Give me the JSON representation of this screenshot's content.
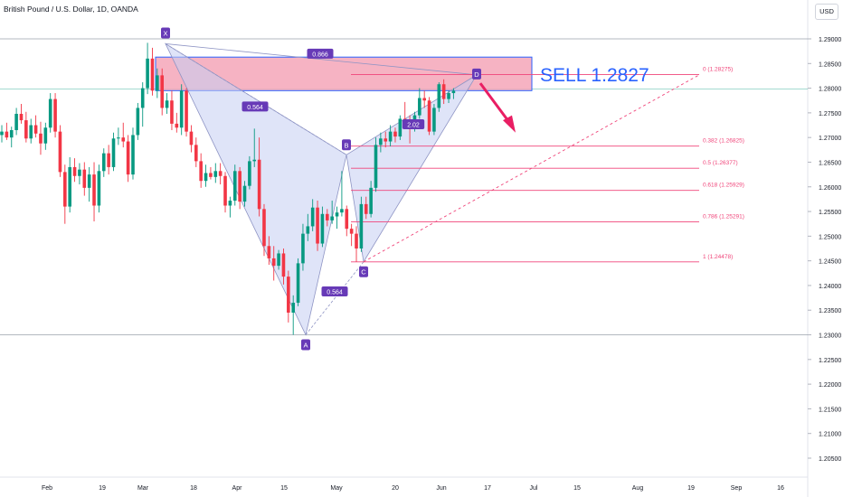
{
  "header": {
    "title": "British Pound / U.S. Dollar, 1D, OANDA",
    "currency": "USD"
  },
  "colors": {
    "bull": "#089981",
    "bear": "#f23645",
    "pattern_fill": "#c5cdf2",
    "pattern_line": "#8e94c4",
    "label_bg": "#673ab7",
    "fib": "#f0457a",
    "zone_fill": "#f5a6b8",
    "zone_border": "#2962ff",
    "sell_text": "#2962ff",
    "arrow": "#e91e63"
  },
  "chart_data": {
    "type": "candlestick",
    "title": "British Pound / U.S. Dollar, 1D, OANDA",
    "ylim": [
      1.2025,
      1.2925
    ],
    "y_ticks": [
      "1.29000",
      "1.28500",
      "1.28000",
      "1.27500",
      "1.27000",
      "1.26500",
      "1.26000",
      "1.25500",
      "1.25000",
      "1.24500",
      "1.24000",
      "1.23500",
      "1.23000",
      "1.22500",
      "1.22000",
      "1.21500",
      "1.21000",
      "1.20500"
    ],
    "x_ticks": [
      "Feb",
      "19",
      "Mar",
      "18",
      "Apr",
      "15",
      "May",
      "20",
      "Jun",
      "17",
      "Jul",
      "15",
      "Aug",
      "19",
      "Sep",
      "16"
    ],
    "candles": [
      [
        1.2705,
        1.2725,
        1.269,
        1.2712
      ],
      [
        1.2712,
        1.273,
        1.2695,
        1.27
      ],
      [
        1.27,
        1.2722,
        1.268,
        1.2715
      ],
      [
        1.2715,
        1.276,
        1.2705,
        1.2748
      ],
      [
        1.2748,
        1.2768,
        1.2728,
        1.2735
      ],
      [
        1.2735,
        1.2752,
        1.269,
        1.2698
      ],
      [
        1.2698,
        1.2738,
        1.2688,
        1.2725
      ],
      [
        1.2725,
        1.2745,
        1.27,
        1.2708
      ],
      [
        1.2708,
        1.2732,
        1.2665,
        1.2688
      ],
      [
        1.2688,
        1.273,
        1.2675,
        1.272
      ],
      [
        1.272,
        1.279,
        1.271,
        1.2778
      ],
      [
        1.2778,
        1.279,
        1.27,
        1.2712
      ],
      [
        1.2712,
        1.2725,
        1.262,
        1.263
      ],
      [
        1.263,
        1.2645,
        1.2525,
        1.256
      ],
      [
        1.256,
        1.266,
        1.2548,
        1.264
      ],
      [
        1.264,
        1.2658,
        1.261,
        1.2622
      ],
      [
        1.2622,
        1.2648,
        1.2605,
        1.2635
      ],
      [
        1.2635,
        1.265,
        1.2582,
        1.2598
      ],
      [
        1.2598,
        1.264,
        1.257,
        1.2625
      ],
      [
        1.2625,
        1.265,
        1.253,
        1.2562
      ],
      [
        1.2562,
        1.2645,
        1.2548,
        1.2632
      ],
      [
        1.2632,
        1.2678,
        1.262,
        1.2668
      ],
      [
        1.2668,
        1.2685,
        1.2625,
        1.264
      ],
      [
        1.264,
        1.271,
        1.2632,
        1.2698
      ],
      [
        1.2698,
        1.272,
        1.2685,
        1.27
      ],
      [
        1.27,
        1.273,
        1.268,
        1.2692
      ],
      [
        1.2692,
        1.2705,
        1.261,
        1.2625
      ],
      [
        1.2625,
        1.272,
        1.2615,
        1.2705
      ],
      [
        1.2705,
        1.277,
        1.2695,
        1.276
      ],
      [
        1.276,
        1.2812,
        1.2722,
        1.28
      ],
      [
        1.28,
        1.2892,
        1.2788,
        1.286
      ],
      [
        1.286,
        1.2882,
        1.2785,
        1.2795
      ],
      [
        1.2795,
        1.284,
        1.278,
        1.2826
      ],
      [
        1.2826,
        1.284,
        1.2745,
        1.276
      ],
      [
        1.276,
        1.279,
        1.2748,
        1.2775
      ],
      [
        1.2775,
        1.2795,
        1.2715,
        1.2728
      ],
      [
        1.2728,
        1.275,
        1.271,
        1.272
      ],
      [
        1.272,
        1.2808,
        1.2705,
        1.2795
      ],
      [
        1.2795,
        1.28,
        1.2702,
        1.2712
      ],
      [
        1.2712,
        1.2725,
        1.267,
        1.2685
      ],
      [
        1.2685,
        1.27,
        1.264,
        1.2652
      ],
      [
        1.2652,
        1.2668,
        1.2598,
        1.2612
      ],
      [
        1.2612,
        1.2645,
        1.26,
        1.2628
      ],
      [
        1.2628,
        1.264,
        1.2615,
        1.262
      ],
      [
        1.262,
        1.2648,
        1.2608,
        1.2632
      ],
      [
        1.2632,
        1.2648,
        1.2605,
        1.2622
      ],
      [
        1.2622,
        1.263,
        1.2548,
        1.2562
      ],
      [
        1.2562,
        1.258,
        1.2538,
        1.2572
      ],
      [
        1.2572,
        1.2645,
        1.2562,
        1.2632
      ],
      [
        1.2632,
        1.264,
        1.2555,
        1.257
      ],
      [
        1.257,
        1.2612,
        1.256,
        1.2602
      ],
      [
        1.2602,
        1.2662,
        1.2595,
        1.2652
      ],
      [
        1.2652,
        1.2718,
        1.264,
        1.2655
      ],
      [
        1.2655,
        1.27,
        1.254,
        1.2555
      ],
      [
        1.2555,
        1.2565,
        1.246,
        1.248
      ],
      [
        1.248,
        1.25,
        1.2442,
        1.2455
      ],
      [
        1.2455,
        1.248,
        1.241,
        1.244
      ],
      [
        1.244,
        1.2472,
        1.2432,
        1.2465
      ],
      [
        1.2465,
        1.2475,
        1.2402,
        1.2418
      ],
      [
        1.2418,
        1.243,
        1.2325,
        1.2345
      ],
      [
        1.2345,
        1.238,
        1.23,
        1.2365
      ],
      [
        1.2365,
        1.2455,
        1.2358,
        1.2445
      ],
      [
        1.2445,
        1.2525,
        1.243,
        1.2505
      ],
      [
        1.2505,
        1.2545,
        1.249,
        1.252
      ],
      [
        1.252,
        1.2575,
        1.251,
        1.2558
      ],
      [
        1.2558,
        1.2572,
        1.247,
        1.2485
      ],
      [
        1.2485,
        1.256,
        1.2478,
        1.2545
      ],
      [
        1.2545,
        1.2555,
        1.252,
        1.2532
      ],
      [
        1.2532,
        1.2572,
        1.2525,
        1.254
      ],
      [
        1.254,
        1.256,
        1.2515,
        1.2548
      ],
      [
        1.2548,
        1.2632,
        1.254,
        1.2555
      ],
      [
        1.2555,
        1.2562,
        1.25,
        1.2515
      ],
      [
        1.2515,
        1.2525,
        1.248,
        1.2505
      ],
      [
        1.2505,
        1.252,
        1.2448,
        1.2475
      ],
      [
        1.2475,
        1.258,
        1.2468,
        1.2565
      ],
      [
        1.2565,
        1.258,
        1.2535,
        1.2545
      ],
      [
        1.2545,
        1.2612,
        1.2538,
        1.2598
      ],
      [
        1.2598,
        1.27,
        1.259,
        1.2685
      ],
      [
        1.2685,
        1.271,
        1.267,
        1.2698
      ],
      [
        1.2698,
        1.2712,
        1.268,
        1.2692
      ],
      [
        1.2692,
        1.2725,
        1.2682,
        1.2712
      ],
      [
        1.2712,
        1.272,
        1.269,
        1.2702
      ],
      [
        1.2702,
        1.2745,
        1.2695,
        1.2738
      ],
      [
        1.2738,
        1.2772,
        1.2718,
        1.273
      ],
      [
        1.273,
        1.2745,
        1.2688,
        1.272
      ],
      [
        1.272,
        1.2752,
        1.2712,
        1.2745
      ],
      [
        1.2745,
        1.28,
        1.2738,
        1.278
      ],
      [
        1.278,
        1.2795,
        1.276,
        1.2775
      ],
      [
        1.2775,
        1.2782,
        1.2705,
        1.2712
      ],
      [
        1.2712,
        1.2768,
        1.2705,
        1.276
      ],
      [
        1.276,
        1.2812,
        1.2752,
        1.2808
      ],
      [
        1.2808,
        1.2818,
        1.2768,
        1.2778
      ],
      [
        1.2778,
        1.2795,
        1.277,
        1.279
      ],
      [
        1.279,
        1.28,
        1.2778,
        1.2795
      ]
    ],
    "harmonic_pattern": {
      "points": {
        "X": 1.289,
        "A": 1.23,
        "B": 1.2665,
        "C": 1.2448,
        "D": 1.2827
      },
      "ratios": [
        "0.866",
        "0.564",
        "0.564",
        "2.02"
      ]
    },
    "fibonacci": [
      {
        "level": "0",
        "price": 1.28275,
        "label": "0 (1.28275)"
      },
      {
        "level": "0.382",
        "price": 1.26825,
        "label": "0.382 (1.26825)"
      },
      {
        "level": "0.5",
        "price": 1.26377,
        "label": "0.5 (1.26377)"
      },
      {
        "level": "0.618",
        "price": 1.25929,
        "label": "0.618 (1.25929)"
      },
      {
        "level": "0.786",
        "price": 1.25291,
        "label": "0.786 (1.25291)"
      },
      {
        "level": "1",
        "price": 1.24478,
        "label": "1 (1.24478)"
      }
    ],
    "sell_zone": {
      "top": 1.2863,
      "bottom": 1.2795
    },
    "annotation": "SELL 1.2827"
  }
}
